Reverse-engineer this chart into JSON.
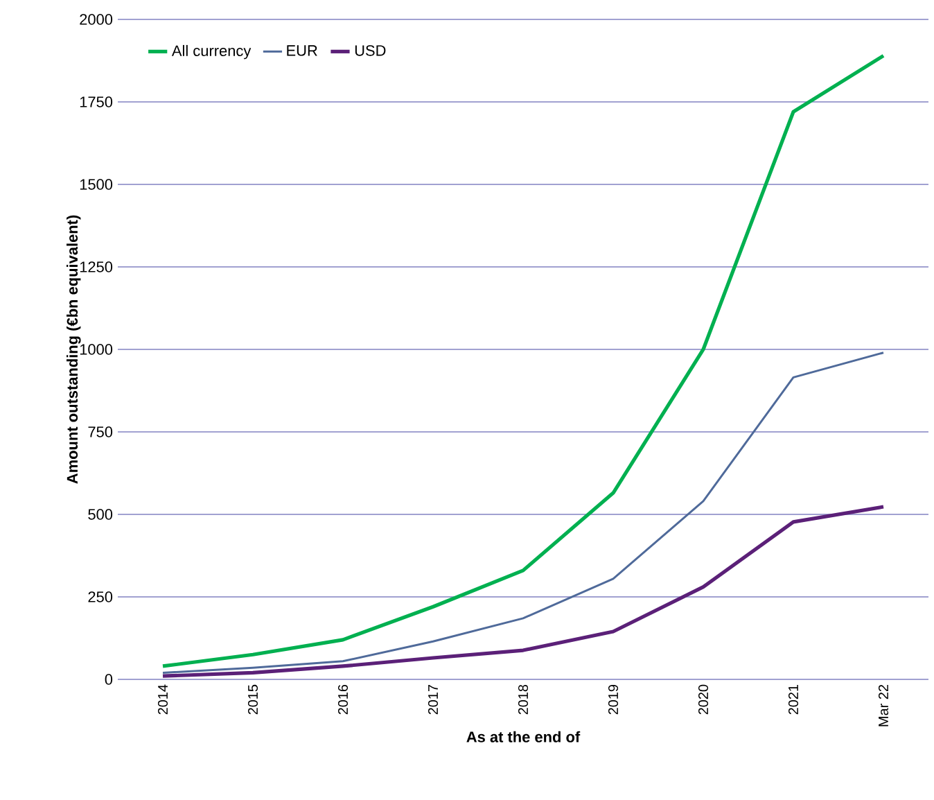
{
  "chart_data": {
    "type": "line",
    "xlabel": "As at the end of",
    "ylabel": "Amount outstanding (€bn equivalent)",
    "categories": [
      "2014",
      "2015",
      "2016",
      "2017",
      "2018",
      "2019",
      "2020",
      "2021",
      "Mar 22"
    ],
    "series": [
      {
        "name": "All currency",
        "color": "#00b050",
        "values": [
          40,
          75,
          120,
          220,
          330,
          565,
          1000,
          1720,
          1890
        ]
      },
      {
        "name": "EUR",
        "color": "#4f6a9a",
        "values": [
          20,
          35,
          55,
          115,
          185,
          305,
          540,
          915,
          990
        ]
      },
      {
        "name": "USD",
        "color": "#5b2078",
        "values": [
          10,
          20,
          40,
          65,
          88,
          145,
          280,
          477,
          523
        ]
      }
    ],
    "ylim": [
      0,
      2000
    ],
    "yticks": [
      0,
      250,
      500,
      750,
      1000,
      1250,
      1500,
      1750,
      2000
    ],
    "grid": "y",
    "legend": "top left",
    "marker": "none",
    "line_style": "solid"
  }
}
